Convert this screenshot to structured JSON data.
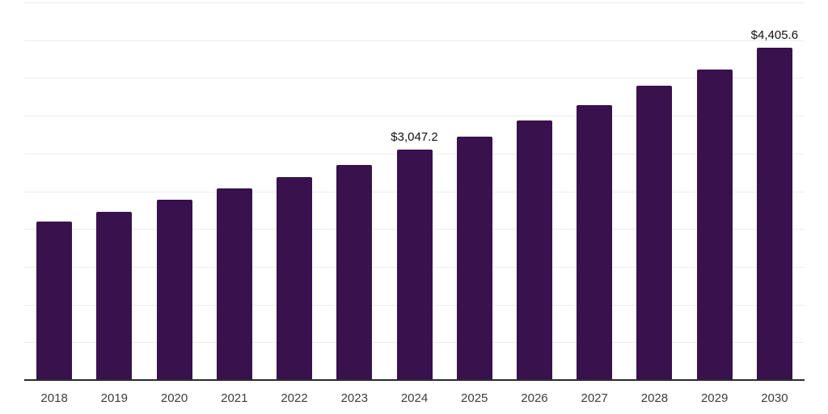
{
  "chart_data": {
    "type": "bar",
    "title": "",
    "xlabel": "",
    "ylabel": "",
    "categories": [
      "2018",
      "2019",
      "2020",
      "2021",
      "2022",
      "2023",
      "2024",
      "2025",
      "2026",
      "2027",
      "2028",
      "2029",
      "2030"
    ],
    "values": [
      2100,
      2228,
      2387,
      2535,
      2684,
      2853,
      3047.2,
      3225,
      3437,
      3640,
      3894,
      4116,
      4405.6
    ],
    "value_labels": [
      "",
      "",
      "",
      "",
      "",
      "",
      "$3,047.2",
      "",
      "",
      "",
      "",
      "",
      "$4,405.6"
    ],
    "ylim": [
      0,
      5000
    ],
    "gridline_step": 500,
    "grid": "horizontal-only",
    "legend": "none",
    "colors": {
      "bar": "#38114d",
      "gridline": "#ededed",
      "axis_line": "#2b2b2b",
      "x_tick_label": "#3c3c3c",
      "value_label": "#111111",
      "background": "#ffffff"
    }
  }
}
